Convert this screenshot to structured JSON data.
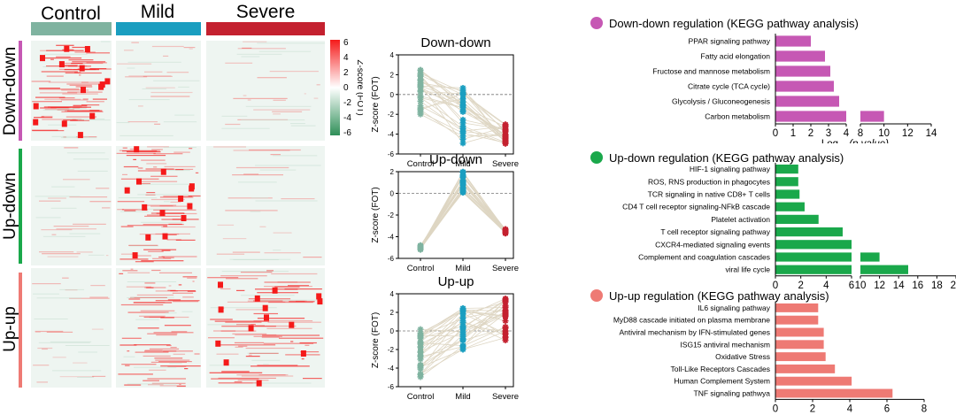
{
  "colors": {
    "control": "#7fb3a0",
    "mild": "#1a9ec0",
    "severe": "#c4212f",
    "down_down": "#c658b4",
    "up_down": "#1aa84b",
    "up_up": "#ee7a74",
    "line": "#ded6c3",
    "heat_high": "#f51a1a",
    "heat_low": "#2f8f58"
  },
  "heatmap": {
    "group_labels": [
      "Control",
      "Mild",
      "Severe"
    ],
    "row_labels": [
      "Down-down",
      "Up-down",
      "Up-up"
    ],
    "colorbar_title": "Z-score (FOT)",
    "colorbar_ticks": [
      "6",
      "4",
      "2",
      "0",
      "-2",
      "-4",
      "-6"
    ]
  },
  "chart_data": [
    {
      "type": "line",
      "title": "Down-down",
      "ylabel": "Z-score (FOT)",
      "categories": [
        "Control",
        "Mild",
        "Severe"
      ],
      "ylim": [
        -6,
        4
      ],
      "yticks": [
        "-6",
        "-4",
        "-2",
        "0",
        "2",
        "4"
      ],
      "means": [
        1.0,
        -0.3,
        -4.2
      ],
      "spread": [
        [
          -2.0,
          3.0
        ],
        [
          -5.0,
          1.0
        ],
        [
          -5.0,
          -3.0
        ]
      ]
    },
    {
      "type": "line",
      "title": "Up-down",
      "ylabel": "Z-score (FOT)",
      "categories": [
        "Control",
        "Mild",
        "Severe"
      ],
      "ylim": [
        -6,
        2
      ],
      "yticks": [
        "-6",
        "-4",
        "-2",
        "0",
        "2"
      ],
      "means": [
        -5.0,
        1.0,
        -3.5
      ],
      "spread": [
        [
          -5.2,
          -4.8
        ],
        [
          0.0,
          2.0
        ],
        [
          -3.7,
          -3.3
        ]
      ]
    },
    {
      "type": "line",
      "title": "Up-up",
      "ylabel": "Z-score (FOT)",
      "categories": [
        "Control",
        "Mild",
        "Severe"
      ],
      "ylim": [
        -6,
        4
      ],
      "yticks": [
        "-6",
        "-4",
        "-2",
        "0",
        "2",
        "4"
      ],
      "means": [
        -2.0,
        0.5,
        1.5
      ],
      "spread": [
        [
          -5.0,
          1.0
        ],
        [
          -2.0,
          2.5
        ],
        [
          -1.0,
          3.5
        ]
      ]
    },
    {
      "type": "bar",
      "title": "Down-down regulation (KEGG pathway analysis)",
      "xlabel": "-Log10 (p value)",
      "xlabel_main": "-Log",
      "xlabel_sub": "10",
      "xlabel_rest": " (p  value)",
      "categories": [
        "PPAR signaling pathway",
        "Fatty acid elongation",
        "Fructose and mannose metabolism",
        "Citrate cycle (TCA cycle)",
        "Glycolysis / Gluconeogenesis",
        "Carbon metabolism"
      ],
      "values": [
        2.0,
        2.8,
        3.1,
        3.3,
        3.6,
        10.0
      ],
      "xticks": [
        "0",
        "1",
        "2",
        "3",
        "4",
        "8",
        "10",
        "12",
        "14"
      ],
      "axis_break": [
        4,
        8
      ]
    },
    {
      "type": "bar",
      "title": "Up-down regulation (KEGG pathway analysis)",
      "xlabel": "-Log10 (p value)",
      "xlabel_main": "-Log",
      "xlabel_sub": "10",
      "xlabel_rest": " (p  value)",
      "categories": [
        "HIF-1 signaling pathway",
        "ROS, RNS production in phagocytes",
        "TCR signaling in native CD8+ T cells",
        "CD4 T cell receptor signaling-NFkB cascade",
        "Platelet activation",
        "T cell receptor signaling pathway",
        "CXCR4-mediated signaling events",
        "Complement and coagulation cascades",
        "viral life cycle"
      ],
      "values": [
        1.8,
        1.8,
        1.9,
        2.3,
        3.4,
        5.3,
        6.0,
        12.0,
        15.0
      ],
      "xticks": [
        "0",
        "2",
        "4",
        "6",
        "10",
        "12",
        "14",
        "16",
        "18",
        "20"
      ],
      "axis_break": [
        6,
        10
      ]
    },
    {
      "type": "bar",
      "title": "Up-up regulation (KEGG pathway analysis)",
      "xlabel": "-Log10 (p value)",
      "xlabel_main": "-Log",
      "xlabel_sub": "10",
      "xlabel_rest": " (p  value )",
      "categories": [
        "IL6 signaling pathway",
        "MyD88 cascade initiated on plasma membrane",
        "Antiviral mechanism by IFN-stimulated genes",
        "ISG15 antiviral mechanism",
        "Oxidative Stress",
        "Toll-Like Receptors Cascades",
        "Human Complement System",
        "TNF signaling pathwya"
      ],
      "values": [
        2.3,
        2.3,
        2.6,
        2.6,
        2.7,
        3.2,
        4.1,
        6.3
      ],
      "xticks": [
        "0",
        "2",
        "4",
        "6",
        "8"
      ],
      "axis_break": null
    }
  ]
}
